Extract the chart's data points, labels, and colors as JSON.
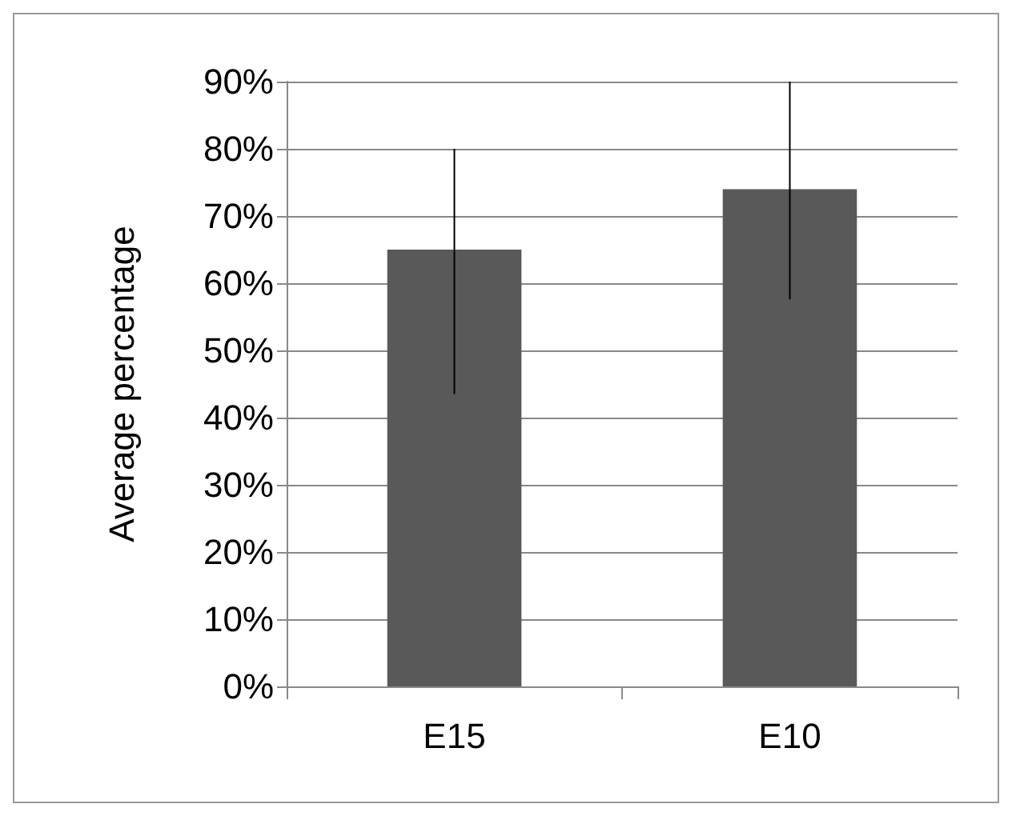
{
  "chart_data": {
    "type": "bar",
    "ylabel": "Average percentage",
    "categories": [
      "E15",
      "E10"
    ],
    "values": [
      65,
      74
    ],
    "color": "#595959",
    "errors": [
      [
        43.5,
        80
      ],
      [
        57.6,
        90
      ]
    ],
    "ylim": [
      0,
      90
    ],
    "yticks": [
      {
        "value": 0,
        "label": "0%"
      },
      {
        "value": 10,
        "label": "10%"
      },
      {
        "value": 20,
        "label": "20%"
      },
      {
        "value": 30,
        "label": "30%"
      },
      {
        "value": 40,
        "label": "40%"
      },
      {
        "value": 50,
        "label": "50%"
      },
      {
        "value": 60,
        "label": "60%"
      },
      {
        "value": 70,
        "label": "70%"
      },
      {
        "value": 80,
        "label": "80%"
      },
      {
        "value": 90,
        "label": "90%"
      }
    ],
    "grid": "y"
  }
}
